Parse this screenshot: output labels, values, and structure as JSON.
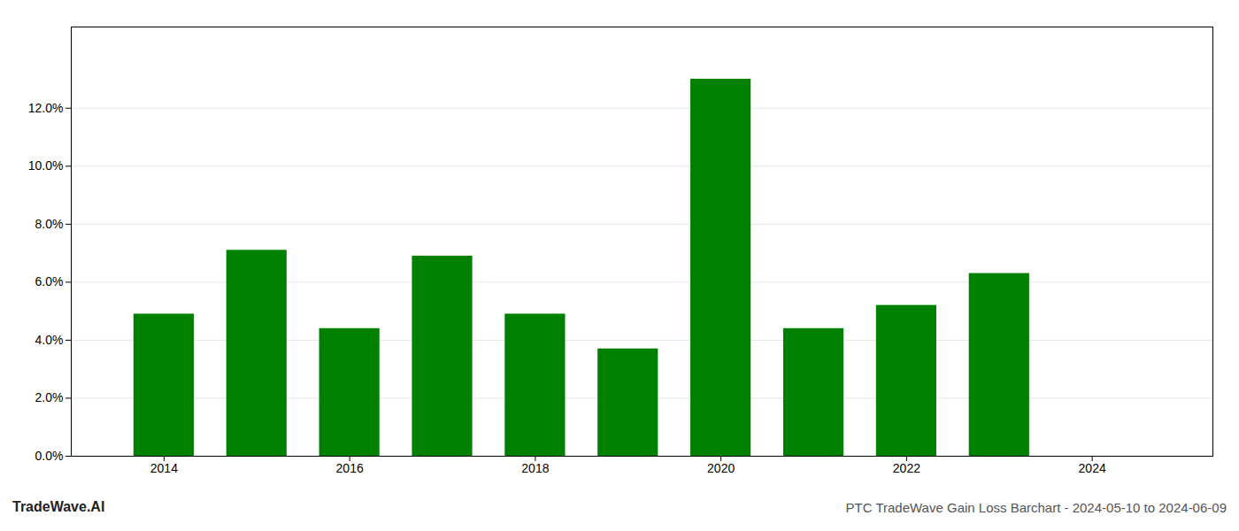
{
  "chart_data": {
    "type": "bar",
    "x": [
      2014,
      2015,
      2016,
      2017,
      2018,
      2019,
      2020,
      2021,
      2022,
      2023
    ],
    "values": [
      0.049,
      0.071,
      0.044,
      0.069,
      0.049,
      0.037,
      0.13,
      0.044,
      0.052,
      0.063
    ],
    "color": "#008000",
    "xlim": [
      2013,
      2025.3
    ],
    "xticks": [
      2014,
      2016,
      2018,
      2020,
      2022,
      2024
    ],
    "ylim": [
      0,
      0.148
    ],
    "yticks": [
      {
        "value": 0.0,
        "label": "0.0%"
      },
      {
        "value": 0.02,
        "label": "2.0%"
      },
      {
        "value": 0.04,
        "label": "4.0%"
      },
      {
        "value": 0.06,
        "label": "6.0%"
      },
      {
        "value": 0.08,
        "label": "8.0%"
      },
      {
        "value": 0.1,
        "label": "10.0%"
      },
      {
        "value": 0.12,
        "label": "12.0%"
      }
    ],
    "grid": true,
    "annotations": [
      "TradeWave.AI",
      "PTC TradeWave Gain Loss Barchart - 2024-05-10 to 2024-06-09"
    ]
  }
}
